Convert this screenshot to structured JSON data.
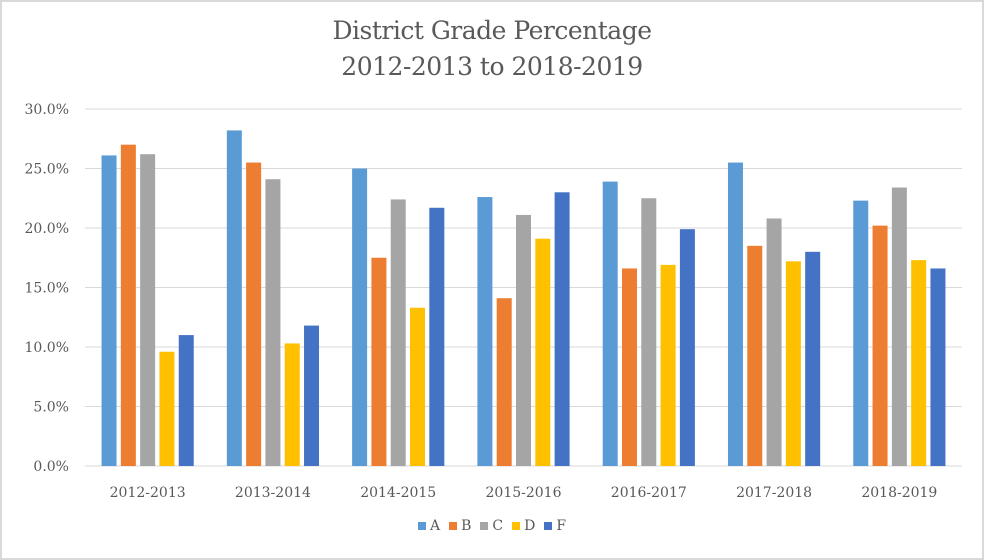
{
  "chart_data": {
    "type": "bar",
    "title": "District Grade Percentage",
    "subtitle": "2012-2013 to 2018-2019",
    "xlabel": "",
    "ylabel": "",
    "ylim": [
      0,
      30
    ],
    "yticks": [
      0,
      5,
      10,
      15,
      20,
      25,
      30
    ],
    "ytick_labels": [
      "0.0%",
      "5.0%",
      "10.0%",
      "15.0%",
      "20.0%",
      "25.0%",
      "30.0%"
    ],
    "grid": true,
    "legend_position": "bottom",
    "categories": [
      "2012-2013",
      "2013-2014",
      "2014-2015",
      "2015-2016",
      "2016-2017",
      "2017-2018",
      "2018-2019"
    ],
    "series": [
      {
        "name": "A",
        "color": "#5b9bd5",
        "values": [
          26.1,
          28.2,
          25.0,
          22.6,
          23.9,
          25.5,
          22.3
        ]
      },
      {
        "name": "B",
        "color": "#ed7d31",
        "values": [
          27.0,
          25.5,
          17.5,
          14.1,
          16.6,
          18.5,
          20.2
        ]
      },
      {
        "name": "C",
        "color": "#a5a5a5",
        "values": [
          26.2,
          24.1,
          22.4,
          21.1,
          22.5,
          20.8,
          23.4
        ]
      },
      {
        "name": "D",
        "color": "#ffc000",
        "values": [
          9.6,
          10.3,
          13.3,
          19.1,
          16.9,
          17.2,
          17.3
        ]
      },
      {
        "name": "F",
        "color": "#4472c4",
        "values": [
          11.0,
          11.8,
          21.7,
          23.0,
          19.9,
          18.0,
          16.6
        ]
      }
    ]
  }
}
